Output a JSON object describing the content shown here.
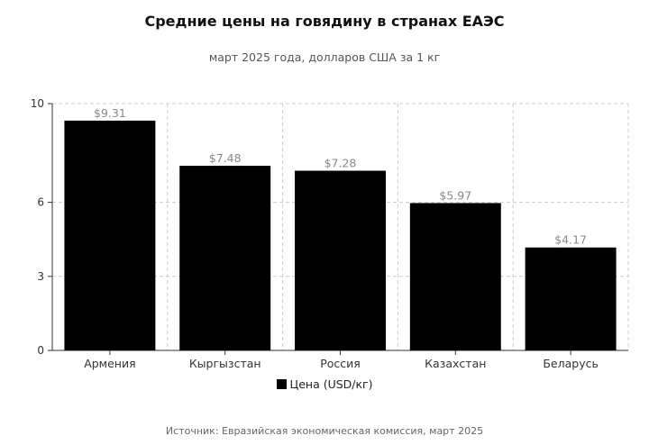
{
  "chart_data": {
    "type": "bar",
    "title": "Средние цены на говядину в странах ЕАЭС",
    "subtitle": "март 2025 года, долларов США за 1 кг",
    "categories": [
      "Армения",
      "Кыргызстан",
      "Россия",
      "Казахстан",
      "Беларусь"
    ],
    "series": [
      {
        "name": "Цена (USD/кг)",
        "values": [
          9.31,
          7.48,
          7.28,
          5.97,
          4.17
        ],
        "color": "#000000"
      }
    ],
    "data_labels": [
      "$9.31",
      "$7.48",
      "$7.28",
      "$5.97",
      "$4.17"
    ],
    "yticks": [
      "0",
      "3",
      "6",
      "10"
    ],
    "ytick_values": [
      0,
      3,
      6,
      10
    ],
    "ylim": [
      0,
      10
    ],
    "grid": true,
    "legend_position": "bottom",
    "source": "Источник: Евразийская экономическая комиссия, март 2025"
  }
}
